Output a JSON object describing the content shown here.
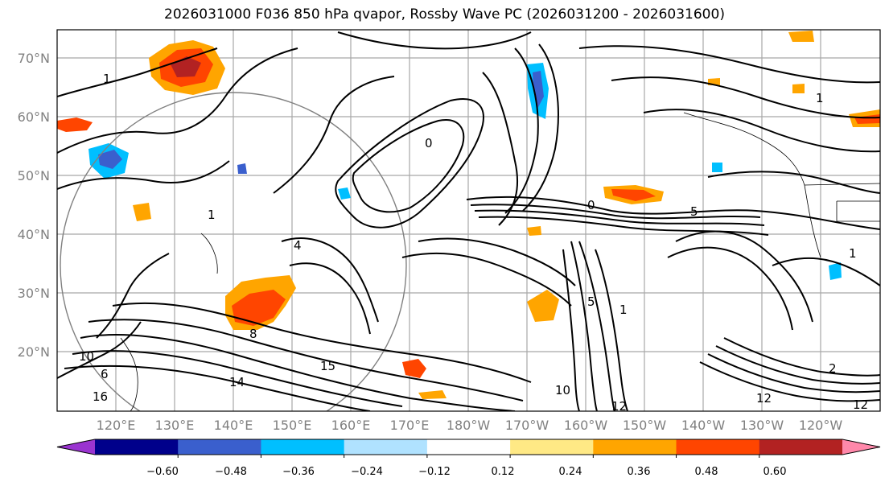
{
  "title": "2026031000 F036 850 hPa qvapor, Rossby Wave PC (2026031200 - 2026031600)",
  "latitude_labels": [
    "70°N",
    "60°N",
    "50°N",
    "40°N",
    "30°N",
    "20°N"
  ],
  "longitude_labels": [
    "120°E",
    "130°E",
    "140°E",
    "150°E",
    "160°E",
    "170°E",
    "180°W",
    "170°W",
    "160°W",
    "150°W",
    "140°W",
    "130°W",
    "120°W"
  ],
  "colorbar": {
    "colors": [
      "#9a34d0",
      "#00008b",
      "#3a5fcd",
      "#00bfff",
      "#b0e2ff",
      "#ffffff",
      "#ffe985",
      "#ffa500",
      "#ff4500",
      "#b22222",
      "#ff88aa"
    ],
    "tick_labels": [
      "−0.60",
      "−0.48",
      "−0.36",
      "−0.24",
      "−0.12",
      "0.12",
      "0.24",
      "0.36",
      "0.48",
      "0.60"
    ]
  },
  "contour_labels": [
    "1",
    "1",
    "1",
    "1",
    "4",
    "0",
    "0",
    "5",
    "6",
    "10",
    "12",
    "12",
    "12",
    "14",
    "15",
    "16",
    "10",
    "8",
    "2",
    "1",
    "5"
  ],
  "colors": {
    "contour": "#000000",
    "graticule": "#a0a0a0",
    "circle": "#808080"
  }
}
